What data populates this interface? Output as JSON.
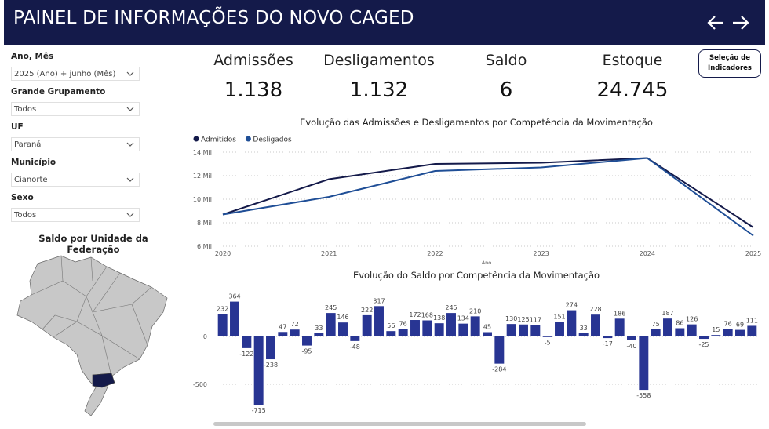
{
  "header": {
    "title": "PAINEL DE INFORMAÇÕES DO NOVO CAGED"
  },
  "filters": [
    {
      "label": "Ano, Mês",
      "value": "2025 (Ano) + junho (Mês)"
    },
    {
      "label": "Grande Grupamento",
      "value": "Todos"
    },
    {
      "label": "UF",
      "value": "Paraná"
    },
    {
      "label": "Município",
      "value": "Cianorte"
    },
    {
      "label": "Sexo",
      "value": "Todos"
    }
  ],
  "map": {
    "title": "Saldo por Unidade da Federação",
    "highlight_color": "#141a4a",
    "base_color": "#c8c8c8"
  },
  "kpis": [
    {
      "label": "Admissões",
      "value": "1.138"
    },
    {
      "label": "Desligamentos",
      "value": "1.132"
    },
    {
      "label": "Saldo",
      "value": "6"
    },
    {
      "label": "Estoque",
      "value": "24.745"
    }
  ],
  "selection_button": {
    "line1": "Seleção de",
    "line2": "Indicadores"
  },
  "colors": {
    "header": "#141a4a",
    "admitidos": "#141a4a",
    "desligados": "#1f4e96",
    "bars": "#283593"
  },
  "chart_data": [
    {
      "type": "line",
      "title": "Evolução das Admissões e Desligamentos por Competência da Movimentação",
      "xlabel": "Ano",
      "ylabel": "",
      "x": [
        "2020",
        "2021",
        "2022",
        "2023",
        "2024",
        "2025"
      ],
      "series": [
        {
          "name": "Admitidos",
          "values": [
            8.7,
            11.7,
            13.0,
            13.1,
            13.5,
            7.6
          ]
        },
        {
          "name": "Desligados",
          "values": [
            8.7,
            10.2,
            12.4,
            12.7,
            13.5,
            6.9
          ]
        }
      ],
      "yticks": [
        "6 Mil",
        "8 Mil",
        "10 Mil",
        "12 Mil",
        "14 Mil"
      ],
      "ylim": [
        6,
        14
      ],
      "grid": true,
      "legend": "top-left"
    },
    {
      "type": "bar",
      "title": "Evolução do Saldo por Competência da Movimentação",
      "values": [
        232,
        364,
        -122,
        -715,
        -238,
        47,
        72,
        -95,
        33,
        245,
        146,
        -48,
        222,
        317,
        56,
        76,
        172,
        168,
        138,
        245,
        134,
        210,
        45,
        -284,
        130,
        125,
        117,
        -5,
        151,
        274,
        33,
        228,
        -17,
        186,
        -40,
        -558,
        75,
        187,
        86,
        126,
        -25,
        15,
        76,
        69,
        111
      ],
      "yticks": [
        "-500",
        "0"
      ],
      "grid": true
    }
  ]
}
